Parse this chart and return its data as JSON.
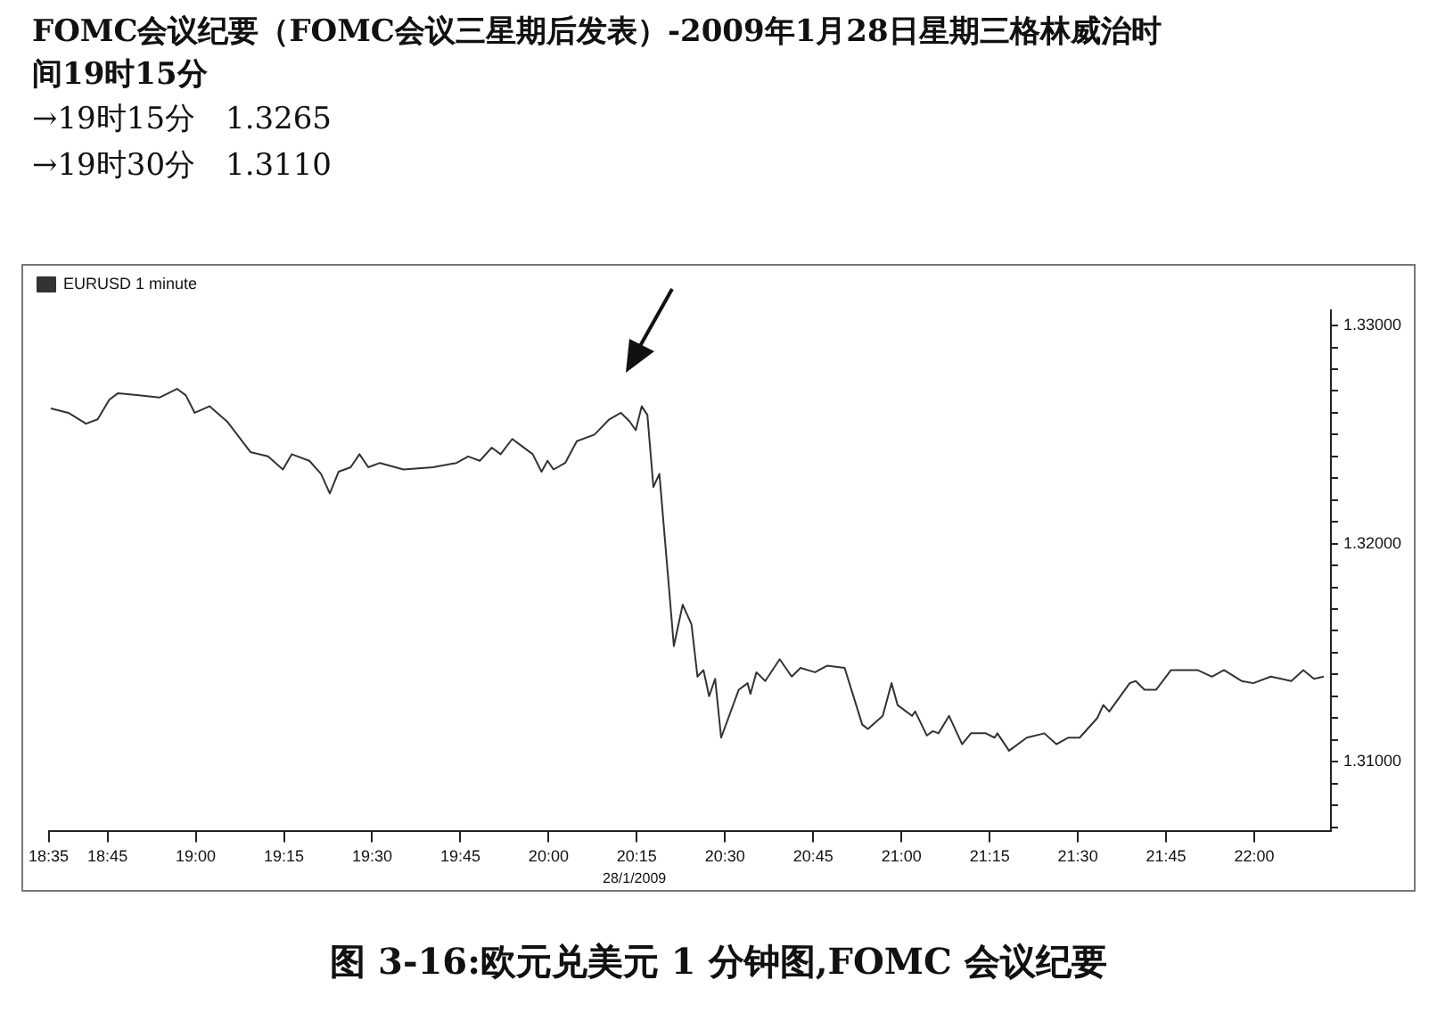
{
  "chart_data": {
    "type": "line",
    "title": "FOMC会议纪要（FOMC会议三星期后发表）-2009年1月28日星期三格林威治时间19时15分",
    "subtitle": "→19时15分　1.3265\n→19时30分　1.3110",
    "annotations": [
      "28/1/2009",
      "图 3-16:欧元兑美元 1 分钟图,FOMC 会议纪要"
    ],
    "x": [
      18.589,
      18.639,
      18.689,
      18.722,
      18.755,
      18.78,
      18.839,
      18.897,
      18.947,
      18.972,
      18.997,
      19.039,
      19.089,
      19.155,
      19.205,
      19.247,
      19.272,
      19.322,
      19.355,
      19.38,
      19.405,
      19.439,
      19.464,
      19.489,
      19.522,
      19.589,
      19.672,
      19.739,
      19.772,
      19.805,
      19.839,
      19.864,
      19.897,
      19.922,
      19.955,
      19.98,
      19.997,
      20.014,
      20.047,
      20.08,
      20.13,
      20.172,
      20.205,
      20.23,
      20.247,
      20.264,
      20.28,
      20.297,
      20.314,
      20.339,
      20.355,
      20.38,
      20.405,
      20.422,
      20.439,
      20.455,
      20.472,
      20.489,
      20.539,
      20.564,
      20.572,
      20.589,
      20.614,
      20.655,
      20.689,
      20.714,
      20.755,
      20.789,
      20.839,
      20.889,
      20.905,
      20.947,
      20.972,
      20.989,
      21.03,
      21.039,
      21.072,
      21.089,
      21.105,
      21.135,
      21.172,
      21.197,
      21.239,
      21.264,
      21.272,
      21.305,
      21.355,
      21.405,
      21.439,
      21.472,
      21.505,
      21.555,
      21.572,
      21.589,
      21.647,
      21.664,
      21.689,
      21.722,
      21.764,
      21.839,
      21.88,
      21.914,
      21.964,
      21.997,
      22.047,
      22.105,
      22.139,
      22.169,
      22.197
    ],
    "series": [
      {
        "name": "EURUSD 1 minute",
        "color": "#333333",
        "values": [
          1.3262,
          1.326,
          1.3255,
          1.3257,
          1.3266,
          1.3269,
          1.3268,
          1.3267,
          1.3271,
          1.3268,
          1.326,
          1.3263,
          1.3256,
          1.3242,
          1.324,
          1.3234,
          1.3241,
          1.3238,
          1.3232,
          1.3223,
          1.3233,
          1.3235,
          1.3241,
          1.3235,
          1.3237,
          1.3234,
          1.3235,
          1.3237,
          1.324,
          1.3238,
          1.3244,
          1.3241,
          1.3248,
          1.3245,
          1.3241,
          1.3233,
          1.3238,
          1.3234,
          1.3237,
          1.3247,
          1.325,
          1.3257,
          1.326,
          1.3256,
          1.3252,
          1.3263,
          1.3259,
          1.3226,
          1.3232,
          1.3184,
          1.3153,
          1.3172,
          1.3163,
          1.3139,
          1.3142,
          1.313,
          1.3138,
          1.3111,
          1.3133,
          1.3136,
          1.3131,
          1.3141,
          1.3137,
          1.3147,
          1.3139,
          1.3143,
          1.3141,
          1.3144,
          1.3143,
          1.3117,
          1.3115,
          1.3121,
          1.3136,
          1.3126,
          1.3121,
          1.3123,
          1.3112,
          1.3114,
          1.3113,
          1.3121,
          1.3108,
          1.3113,
          1.3113,
          1.3111,
          1.3113,
          1.3105,
          1.3111,
          1.3113,
          1.3108,
          1.3111,
          1.3111,
          1.312,
          1.3126,
          1.3123,
          1.3136,
          1.3137,
          1.3133,
          1.3133,
          1.3142,
          1.3142,
          1.3139,
          1.3142,
          1.3137,
          1.3136,
          1.3139,
          1.3137,
          1.3142,
          1.3138,
          1.3139
        ]
      }
    ],
    "xlim": [
      18.583,
      22.217
    ],
    "xticks": [
      {
        "value": 18.583,
        "label": "18:35"
      },
      {
        "value": 18.75,
        "label": "18:45"
      },
      {
        "value": 19,
        "label": "19:00"
      },
      {
        "value": 19.25,
        "label": "19:15"
      },
      {
        "value": 19.5,
        "label": "19:30"
      },
      {
        "value": 19.75,
        "label": "19:45"
      },
      {
        "value": 20,
        "label": "20:00"
      },
      {
        "value": 20.25,
        "label": "20:15"
      },
      {
        "value": 20.5,
        "label": "20:30"
      },
      {
        "value": 20.75,
        "label": "20:45"
      },
      {
        "value": 21,
        "label": "21:00"
      },
      {
        "value": 21.25,
        "label": "21:15"
      },
      {
        "value": 21.5,
        "label": "21:30"
      },
      {
        "value": 21.75,
        "label": "21:45"
      },
      {
        "value": 22,
        "label": "22:00"
      }
    ],
    "ylim": [
      1.3068,
      1.3307
    ],
    "yticks": [
      {
        "value": 1.307,
        "label": null
      },
      {
        "value": 1.308,
        "label": null
      },
      {
        "value": 1.309,
        "label": null
      },
      {
        "value": 1.31,
        "label": "1.31000"
      },
      {
        "value": 1.311,
        "label": null
      },
      {
        "value": 1.312,
        "label": null
      },
      {
        "value": 1.313,
        "label": null
      },
      {
        "value": 1.314,
        "label": null
      },
      {
        "value": 1.315,
        "label": null
      },
      {
        "value": 1.316,
        "label": null
      },
      {
        "value": 1.317,
        "label": null
      },
      {
        "value": 1.318,
        "label": null
      },
      {
        "value": 1.319,
        "label": null
      },
      {
        "value": 1.32,
        "label": "1.32000"
      },
      {
        "value": 1.321,
        "label": null
      },
      {
        "value": 1.322,
        "label": null
      },
      {
        "value": 1.323,
        "label": null
      },
      {
        "value": 1.324,
        "label": null
      },
      {
        "value": 1.325,
        "label": null
      },
      {
        "value": 1.326,
        "label": null
      },
      {
        "value": 1.327,
        "label": null
      },
      {
        "value": 1.328,
        "label": null
      },
      {
        "value": 1.329,
        "label": null
      },
      {
        "value": 1.33,
        "label": "1.33000"
      }
    ],
    "legend": "top left",
    "grid": false,
    "line_style": "solid"
  }
}
